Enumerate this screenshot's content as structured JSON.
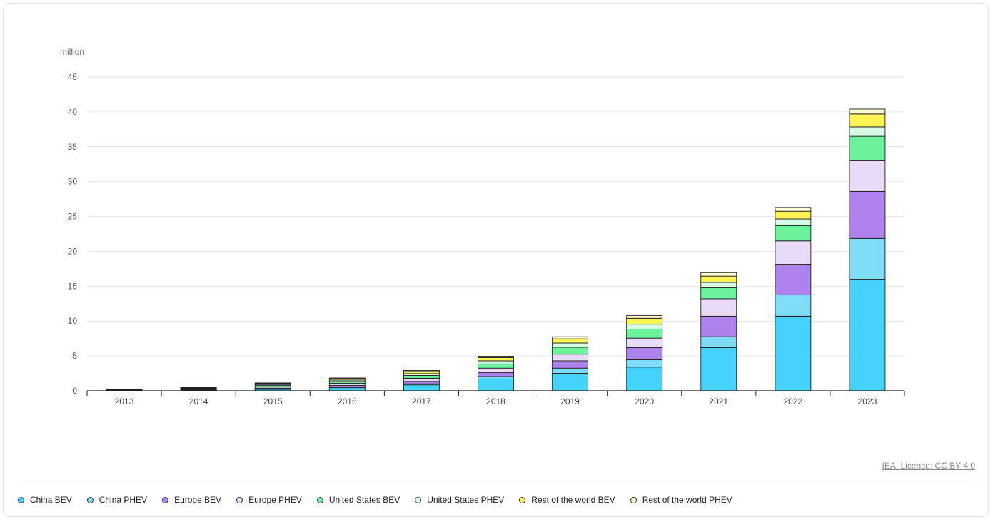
{
  "licence": "IEA. Licence: CC BY 4.0",
  "chart_data": {
    "type": "bar",
    "stacked": true,
    "yunit": "million",
    "ylim": [
      0,
      45
    ],
    "yticks": [
      0,
      5,
      10,
      15,
      20,
      25,
      30,
      35,
      40,
      45
    ],
    "grid": true,
    "legend_position": "bottom",
    "categories": [
      "2013",
      "2014",
      "2015",
      "2016",
      "2017",
      "2018",
      "2019",
      "2020",
      "2021",
      "2022",
      "2023"
    ],
    "series": [
      {
        "name": "China BEV",
        "color": "#45d3fb",
        "values": [
          0.02,
          0.06,
          0.2,
          0.45,
          0.85,
          1.7,
          2.5,
          3.4,
          6.2,
          10.7,
          16.0
        ]
      },
      {
        "name": "China PHEV",
        "color": "#7fdcf6",
        "values": [
          0.01,
          0.02,
          0.05,
          0.1,
          0.15,
          0.35,
          0.75,
          1.05,
          1.55,
          3.05,
          5.85
        ]
      },
      {
        "name": "Europe BEV",
        "color": "#ad82ec",
        "values": [
          0.03,
          0.06,
          0.12,
          0.22,
          0.35,
          0.55,
          1.05,
          1.75,
          2.95,
          4.4,
          6.75
        ]
      },
      {
        "name": "Europe PHEV",
        "color": "#e7dbf8",
        "values": [
          0.03,
          0.06,
          0.18,
          0.3,
          0.45,
          0.65,
          0.95,
          1.35,
          2.5,
          3.35,
          4.4
        ]
      },
      {
        "name": "United States BEV",
        "color": "#6bf29b",
        "values": [
          0.07,
          0.12,
          0.2,
          0.27,
          0.4,
          0.6,
          1.0,
          1.3,
          1.6,
          2.2,
          3.5
        ]
      },
      {
        "name": "United States PHEV",
        "color": "#d8fbe6",
        "values": [
          0.03,
          0.07,
          0.15,
          0.2,
          0.27,
          0.45,
          0.6,
          0.7,
          0.75,
          0.95,
          1.35
        ]
      },
      {
        "name": "Rest of the world BEV",
        "color": "#fdf352",
        "values": [
          0.03,
          0.08,
          0.15,
          0.2,
          0.3,
          0.45,
          0.6,
          0.85,
          0.9,
          1.1,
          1.85
        ]
      },
      {
        "name": "Rest of the world PHEV",
        "color": "#fdfbd2",
        "values": [
          0.02,
          0.04,
          0.08,
          0.1,
          0.15,
          0.2,
          0.3,
          0.4,
          0.5,
          0.55,
          0.7
        ]
      }
    ]
  }
}
